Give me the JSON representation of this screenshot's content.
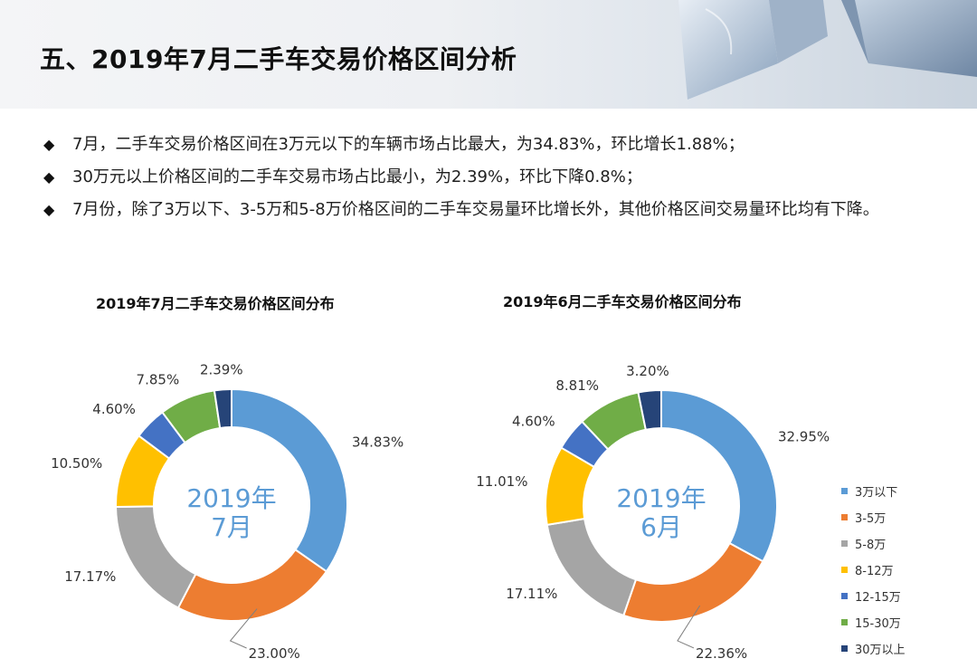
{
  "page": {
    "title": "五、2019年7月二手车交易价格区间分析",
    "bullets": [
      "7月，二手车交易价格区间在3万元以下的车辆市场占比最大，为34.83%，环比增长1.88%；",
      "30万元以上价格区间的二手车交易市场占比最小，为2.39%，环比下降0.8%；",
      "7月份，除了3万以下、3-5万和5-8万价格区间的二手车交易量环比增长外，其他价格区间交易量环比均有下降。"
    ]
  },
  "colors": [
    "#5b9bd5",
    "#ed7d31",
    "#a5a5a5",
    "#ffc000",
    "#4472c4",
    "#70ad47",
    "#264478"
  ],
  "chart_data": [
    {
      "type": "pie",
      "title": "2019年7月二手车交易价格区间分布",
      "center_label": [
        "2019年",
        "7月"
      ],
      "categories": [
        "3万以下",
        "3-5万",
        "5-8万",
        "8-12万",
        "12-15万",
        "15-30万",
        "30万以上"
      ],
      "values": [
        34.83,
        23.0,
        17.17,
        10.5,
        4.6,
        7.85,
        2.39
      ],
      "labels": [
        "34.83%",
        "23.00%",
        "17.17%",
        "10.50%",
        "4.60%",
        "7.85%",
        "2.39%"
      ]
    },
    {
      "type": "pie",
      "title": "2019年6月二手车交易价格区间分布",
      "center_label": [
        "2019年",
        "6月"
      ],
      "categories": [
        "3万以下",
        "3-5万",
        "5-8万",
        "8-12万",
        "12-15万",
        "15-30万",
        "30万以上"
      ],
      "values": [
        32.95,
        22.36,
        17.11,
        11.01,
        4.6,
        8.81,
        3.2
      ],
      "labels": [
        "32.95%",
        "22.36%",
        "17.11%",
        "11.01%",
        "4.60%",
        "8.81%",
        "3.20%"
      ],
      "legend": [
        "3万以下",
        "3-5万",
        "5-8万",
        "8-12万",
        "12-15万",
        "15-30万",
        "30万以上"
      ]
    }
  ]
}
